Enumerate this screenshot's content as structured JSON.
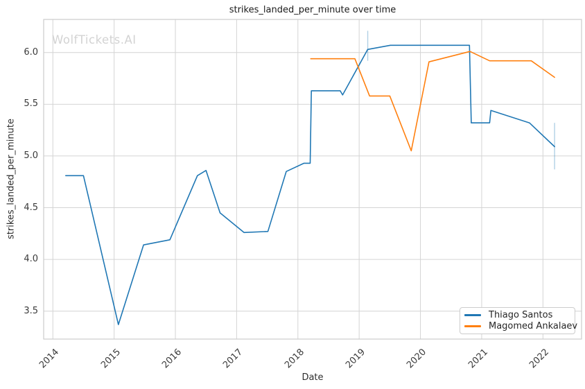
{
  "chart": {
    "title": "strikes_landed_per_minute over time",
    "xlabel": "Date",
    "ylabel": "strikes_landed_per_minute",
    "watermark": "WolfTickets.AI"
  },
  "legend": {
    "items": [
      {
        "label": "Thiago Santos",
        "color": "#1f77b4"
      },
      {
        "label": "Magomed Ankalaev",
        "color": "#ff7f0e"
      }
    ]
  },
  "colors": {
    "series_blue": "#1f77b4",
    "series_orange": "#ff7f0e",
    "error_bar": "rgba(31, 119, 180, 0.35)",
    "grid": "#d4d4d4",
    "frame": "#cccccc",
    "title_text": "#1a1a1a",
    "tick_text": "#3a3a3a",
    "watermark_text": "#d3d3d3",
    "background": "#ffffff"
  },
  "chart_data": {
    "type": "line",
    "title": "strikes_landed_per_minute over time",
    "xlabel": "Date",
    "ylabel": "strikes_landed_per_minute",
    "grid": true,
    "legend_position": "lower right",
    "xlim": [
      2013.85,
      2022.63
    ],
    "ylim": [
      3.23,
      6.32
    ],
    "x_ticks": [
      2014,
      2015,
      2016,
      2017,
      2018,
      2019,
      2020,
      2021,
      2022
    ],
    "y_ticks": [
      3.5,
      4.0,
      4.5,
      5.0,
      5.5,
      6.0
    ],
    "series": [
      {
        "name": "Thiago Santos",
        "color": "#1f77b4",
        "points": [
          [
            2014.21,
            4.81
          ],
          [
            2014.5,
            4.81
          ],
          [
            2015.07,
            3.37
          ],
          [
            2015.48,
            4.14
          ],
          [
            2015.91,
            4.19
          ],
          [
            2016.36,
            4.81
          ],
          [
            2016.5,
            4.86
          ],
          [
            2016.73,
            4.45
          ],
          [
            2017.12,
            4.26
          ],
          [
            2017.51,
            4.27
          ],
          [
            2017.81,
            4.85
          ],
          [
            2018.1,
            4.93
          ],
          [
            2018.2,
            4.93
          ],
          [
            2018.22,
            5.63
          ],
          [
            2018.69,
            5.63
          ],
          [
            2018.73,
            5.59
          ],
          [
            2019.14,
            6.03
          ],
          [
            2019.51,
            6.07
          ],
          [
            2020.8,
            6.07
          ],
          [
            2020.83,
            5.32
          ],
          [
            2021.13,
            5.32
          ],
          [
            2021.15,
            5.44
          ],
          [
            2021.78,
            5.32
          ],
          [
            2022.19,
            5.09
          ]
        ]
      },
      {
        "name": "Magomed Ankalaev",
        "color": "#ff7f0e",
        "points": [
          [
            2018.21,
            5.94
          ],
          [
            2018.93,
            5.94
          ],
          [
            2019.17,
            5.58
          ],
          [
            2019.5,
            5.58
          ],
          [
            2019.85,
            5.05
          ],
          [
            2020.14,
            5.91
          ],
          [
            2020.81,
            6.01
          ],
          [
            2021.13,
            5.92
          ],
          [
            2021.81,
            5.92
          ],
          [
            2022.19,
            5.76
          ]
        ]
      }
    ],
    "error_bars": [
      {
        "series": "Thiago Santos",
        "x": 2019.14,
        "y_low": 5.92,
        "y_high": 6.21
      },
      {
        "series": "Thiago Santos",
        "x": 2022.19,
        "y_low": 4.87,
        "y_high": 5.32
      }
    ]
  }
}
